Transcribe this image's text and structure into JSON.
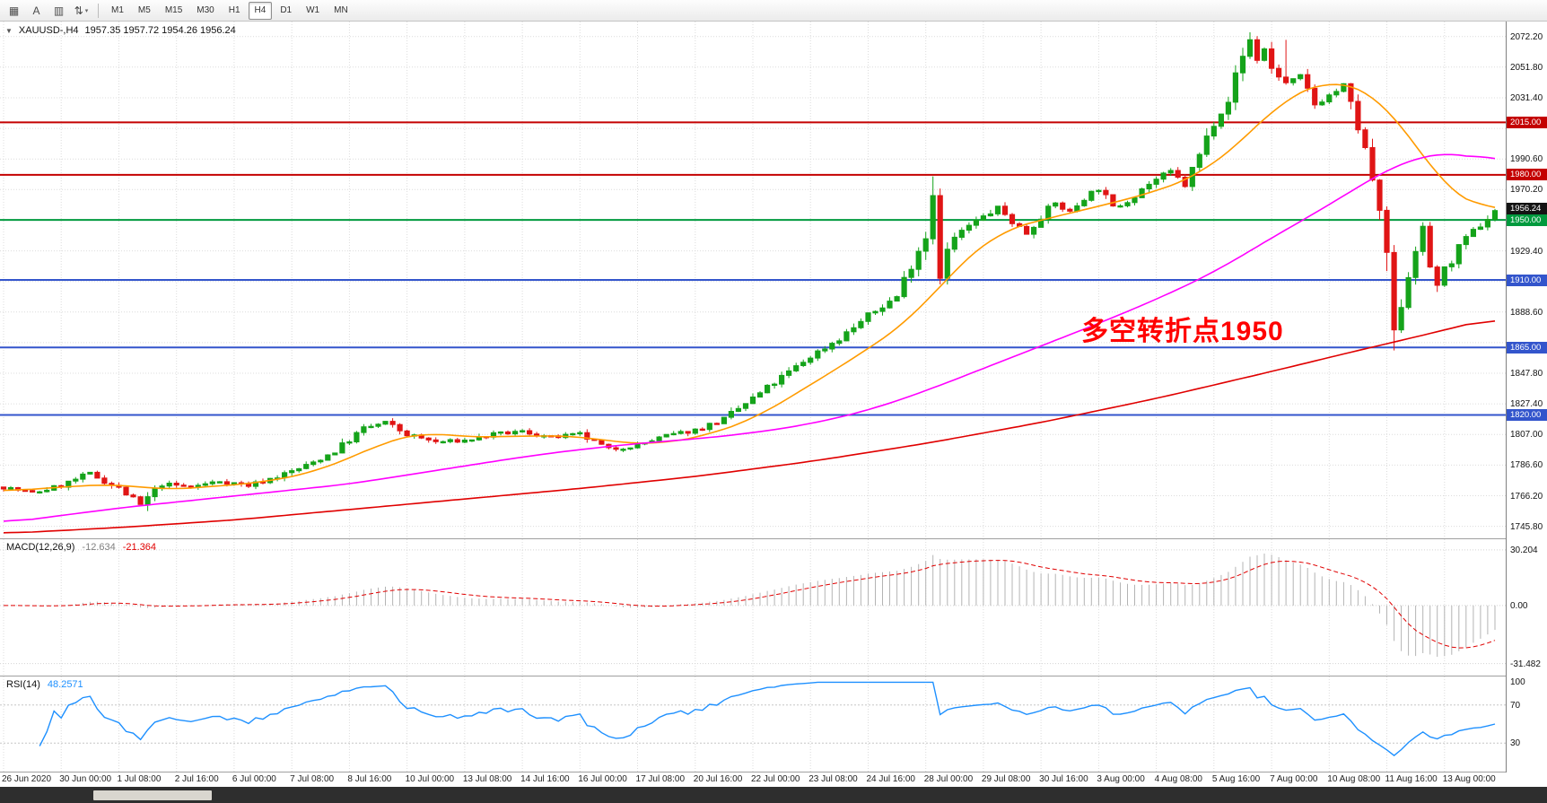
{
  "toolbar": {
    "icons": [
      {
        "name": "tick-chart-icon",
        "glyph": "▦",
        "caret": false
      },
      {
        "name": "text-annotation-icon",
        "glyph": "A",
        "caret": false
      },
      {
        "name": "chart-window-icon",
        "glyph": "▥",
        "caret": false
      },
      {
        "name": "scale-updown-icon",
        "glyph": "⇅",
        "caret": true
      }
    ],
    "timeframes": [
      "M1",
      "M5",
      "M15",
      "M30",
      "H1",
      "H4",
      "D1",
      "W1",
      "MN"
    ],
    "active_timeframe": "H4"
  },
  "chart": {
    "marker_glyph": "▼",
    "title": "XAUUSD-,H4",
    "ohlc": "1957.35 1957.72 1954.26 1956.24",
    "annotation": {
      "text": "多空转折点1950",
      "color": "#ff0000"
    },
    "price_axis": [
      "2072.20",
      "2051.80",
      "2031.40",
      "2011.00",
      "1990.60",
      "1970.20",
      "1949.80",
      "1929.40",
      "1909.00",
      "1888.60",
      "1868.20",
      "1847.80",
      "1827.40",
      "1807.00",
      "1786.60",
      "1766.20",
      "1745.80"
    ],
    "hlines": [
      {
        "price": 2015.0,
        "label": "2015.00",
        "color": "#c40000",
        "width": 2
      },
      {
        "price": 1980.0,
        "label": "1980.00",
        "color": "#c40000",
        "width": 2
      },
      {
        "price": 1950.0,
        "label": "1950.00",
        "color": "#009a3e",
        "width": 2
      },
      {
        "price": 1910.0,
        "label": "1910.00",
        "color": "#3355cc",
        "width": 2
      },
      {
        "price": 1865.0,
        "label": "1865.00",
        "color": "#3355cc",
        "width": 2
      },
      {
        "price": 1820.0,
        "label": "1820.00",
        "color": "#3355cc",
        "width": 2
      }
    ],
    "current_price": {
      "value": 1956.24,
      "label": "1956.24",
      "box_color": "#141414"
    }
  },
  "macd": {
    "label": "MACD(12,26,9)",
    "value_main": "-12.634",
    "value_signal": "-21.364",
    "axis": [
      "30.204",
      "0.00",
      "-31.482"
    ],
    "colors": {
      "hist": "#b4b4b4",
      "signal": "#e00000"
    }
  },
  "rsi": {
    "label": "RSI(14)",
    "value": "48.2571",
    "axis": [
      "100",
      "70",
      "30"
    ],
    "levels": [
      70,
      30
    ],
    "color": "#1e90ff"
  },
  "time_axis": [
    "26 Jun 2020",
    "30 Jun 00:00",
    "1 Jul 08:00",
    "2 Jul 16:00",
    "6 Jul 00:00",
    "7 Jul 08:00",
    "8 Jul 16:00",
    "10 Jul 00:00",
    "13 Jul 08:00",
    "14 Jul 16:00",
    "16 Jul 00:00",
    "17 Jul 08:00",
    "20 Jul 16:00",
    "22 Jul 00:00",
    "23 Jul 08:00",
    "24 Jul 16:00",
    "28 Jul 00:00",
    "29 Jul 08:00",
    "30 Jul 16:00",
    "3 Aug 00:00",
    "4 Aug 08:00",
    "5 Aug 16:00",
    "7 Aug 00:00",
    "10 Aug 08:00",
    "11 Aug 16:00",
    "13 Aug 00:00"
  ],
  "chart_data": {
    "type": "candlestick",
    "symbol": "XAUUSD",
    "timeframe": "H4",
    "price_range": [
      1737.8,
      2082.2
    ],
    "candle_count": 208,
    "labels_every_n_candles": 8,
    "seed": 7,
    "noise": 2.0,
    "last_close": 1956.24,
    "up_color": "#15a31a",
    "down_color": "#e01515",
    "close_waypoints": [
      [
        0,
        1772
      ],
      [
        4,
        1768
      ],
      [
        8,
        1773
      ],
      [
        12,
        1781
      ],
      [
        16,
        1771
      ],
      [
        19,
        1760
      ],
      [
        22,
        1774
      ],
      [
        26,
        1772
      ],
      [
        30,
        1776
      ],
      [
        34,
        1773
      ],
      [
        38,
        1779
      ],
      [
        42,
        1786
      ],
      [
        46,
        1796
      ],
      [
        50,
        1811
      ],
      [
        53,
        1815
      ],
      [
        56,
        1807
      ],
      [
        60,
        1802
      ],
      [
        64,
        1803
      ],
      [
        68,
        1807
      ],
      [
        72,
        1809
      ],
      [
        76,
        1805
      ],
      [
        80,
        1807
      ],
      [
        84,
        1797
      ],
      [
        88,
        1800
      ],
      [
        92,
        1806
      ],
      [
        96,
        1810
      ],
      [
        100,
        1817
      ],
      [
        104,
        1831
      ],
      [
        108,
        1845
      ],
      [
        112,
        1859
      ],
      [
        116,
        1871
      ],
      [
        120,
        1886
      ],
      [
        124,
        1899
      ],
      [
        126,
        1921
      ],
      [
        128,
        1940
      ],
      [
        129,
        1968
      ],
      [
        130,
        1916
      ],
      [
        131,
        1929
      ],
      [
        132,
        1938
      ],
      [
        134,
        1946
      ],
      [
        136,
        1952
      ],
      [
        138,
        1958
      ],
      [
        140,
        1949
      ],
      [
        142,
        1941
      ],
      [
        144,
        1953
      ],
      [
        146,
        1961
      ],
      [
        148,
        1955
      ],
      [
        150,
        1965
      ],
      [
        152,
        1971
      ],
      [
        154,
        1958
      ],
      [
        156,
        1963
      ],
      [
        158,
        1971
      ],
      [
        160,
        1977
      ],
      [
        162,
        1982
      ],
      [
        164,
        1973
      ],
      [
        166,
        1993
      ],
      [
        168,
        2016
      ],
      [
        170,
        2031
      ],
      [
        172,
        2059
      ],
      [
        173,
        2070
      ],
      [
        174,
        2057
      ],
      [
        175,
        2064
      ],
      [
        176,
        2051
      ],
      [
        178,
        2041
      ],
      [
        180,
        2045
      ],
      [
        182,
        2027
      ],
      [
        184,
        2033
      ],
      [
        186,
        2039
      ],
      [
        188,
        2012
      ],
      [
        190,
        1977
      ],
      [
        191,
        1949
      ],
      [
        192,
        1928
      ],
      [
        193,
        1872
      ],
      [
        194,
        1896
      ],
      [
        195,
        1914
      ],
      [
        196,
        1933
      ],
      [
        197,
        1943
      ],
      [
        198,
        1919
      ],
      [
        199,
        1907
      ],
      [
        200,
        1916
      ],
      [
        202,
        1931
      ],
      [
        204,
        1942
      ],
      [
        206,
        1951
      ],
      [
        207,
        1956.24
      ]
    ],
    "wick_overrides": [
      {
        "i": 20,
        "low": 1756
      },
      {
        "i": 129,
        "high": 1979
      },
      {
        "i": 130,
        "low": 1907
      },
      {
        "i": 173,
        "high": 2075
      },
      {
        "i": 178,
        "high": 2070
      },
      {
        "i": 193,
        "low": 1863
      },
      {
        "i": 199,
        "low": 1902
      }
    ],
    "ma_lines": [
      {
        "name": "ma-fast-orange",
        "color": "#ff9b00",
        "points": [
          [
            0,
            1769
          ],
          [
            8,
            1772
          ],
          [
            16,
            1774
          ],
          [
            22,
            1770
          ],
          [
            28,
            1772
          ],
          [
            36,
            1775
          ],
          [
            44,
            1783
          ],
          [
            52,
            1800
          ],
          [
            58,
            1809
          ],
          [
            64,
            1805
          ],
          [
            72,
            1806
          ],
          [
            80,
            1806
          ],
          [
            86,
            1801
          ],
          [
            92,
            1801
          ],
          [
            98,
            1807
          ],
          [
            104,
            1817
          ],
          [
            112,
            1840
          ],
          [
            120,
            1864
          ],
          [
            126,
            1884
          ],
          [
            132,
            1917
          ],
          [
            138,
            1942
          ],
          [
            144,
            1950
          ],
          [
            152,
            1959
          ],
          [
            160,
            1969
          ],
          [
            166,
            1980
          ],
          [
            172,
            2003
          ],
          [
            178,
            2032
          ],
          [
            184,
            2043
          ],
          [
            188,
            2040
          ],
          [
            192,
            2026
          ],
          [
            196,
            2000
          ],
          [
            200,
            1972
          ],
          [
            204,
            1958
          ],
          [
            207,
            1957
          ]
        ]
      },
      {
        "name": "ma-mid-magenta",
        "color": "#ff00ff",
        "points": [
          [
            0,
            1748
          ],
          [
            8,
            1753
          ],
          [
            16,
            1758
          ],
          [
            24,
            1762
          ],
          [
            32,
            1766
          ],
          [
            40,
            1770
          ],
          [
            48,
            1774
          ],
          [
            56,
            1780
          ],
          [
            64,
            1786
          ],
          [
            72,
            1792
          ],
          [
            80,
            1797
          ],
          [
            88,
            1801
          ],
          [
            96,
            1804
          ],
          [
            104,
            1808
          ],
          [
            112,
            1814
          ],
          [
            120,
            1823
          ],
          [
            128,
            1836
          ],
          [
            136,
            1851
          ],
          [
            144,
            1866
          ],
          [
            152,
            1881
          ],
          [
            160,
            1897
          ],
          [
            168,
            1915
          ],
          [
            176,
            1938
          ],
          [
            184,
            1960
          ],
          [
            190,
            1978
          ],
          [
            194,
            1988
          ],
          [
            198,
            1994
          ],
          [
            202,
            1995
          ],
          [
            205,
            1991
          ],
          [
            207,
            1988
          ]
        ]
      },
      {
        "name": "ma-slow-red",
        "color": "#e00000",
        "points": [
          [
            0,
            1741
          ],
          [
            16,
            1745
          ],
          [
            32,
            1750
          ],
          [
            48,
            1757
          ],
          [
            64,
            1764
          ],
          [
            80,
            1771
          ],
          [
            96,
            1779
          ],
          [
            112,
            1789
          ],
          [
            128,
            1801
          ],
          [
            144,
            1815
          ],
          [
            160,
            1831
          ],
          [
            176,
            1849
          ],
          [
            188,
            1863
          ],
          [
            196,
            1872
          ],
          [
            202,
            1879
          ],
          [
            207,
            1885
          ]
        ]
      }
    ],
    "macd_scale": [
      -38,
      36
    ],
    "rsi_scale": [
      0,
      100
    ]
  }
}
